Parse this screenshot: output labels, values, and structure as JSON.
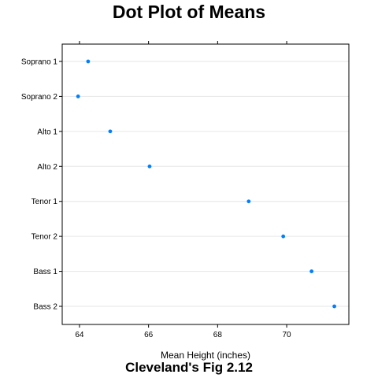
{
  "chart_data": {
    "type": "scatter",
    "title": "Dot Plot of Means",
    "subtitle": "Cleveland's Fig 2.12",
    "xlabel": "Mean Height (inches)",
    "ylabel": "",
    "xlim": [
      63.5,
      71.8
    ],
    "xticks": [
      64,
      66,
      68,
      70
    ],
    "categories": [
      "Soprano 1",
      "Soprano 2",
      "Alto 1",
      "Alto 2",
      "Tenor 1",
      "Tenor 2",
      "Bass 1",
      "Bass 2"
    ],
    "values": [
      64.25,
      63.96,
      64.89,
      66.03,
      68.9,
      69.9,
      70.72,
      71.38
    ],
    "grid": "horizontal reference lines",
    "colors": {
      "point": "#0080ff",
      "grid": "#e6e6e6",
      "frame": "#000000"
    }
  }
}
